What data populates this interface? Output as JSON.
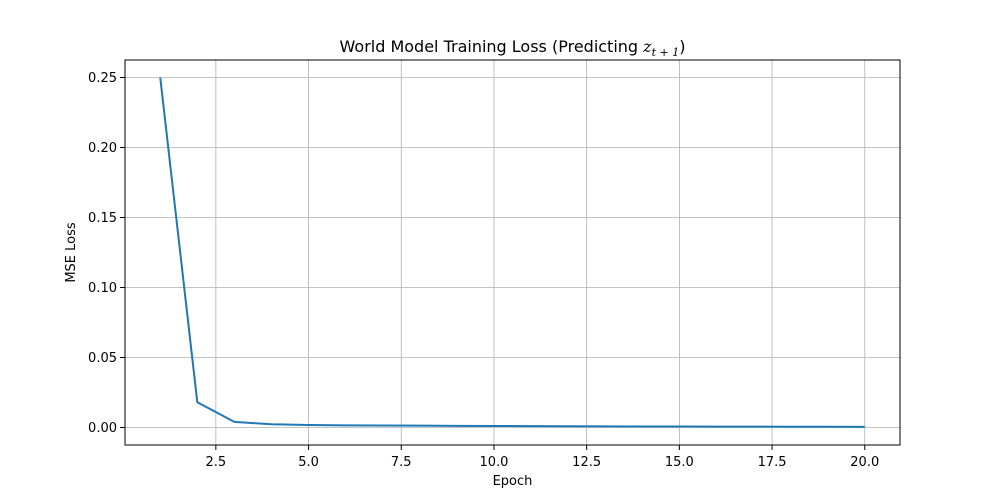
{
  "chart_data": {
    "type": "line",
    "title": {
      "prefix": "World Model Training Loss (Predicting ",
      "math_var": "z",
      "math_sub": "t + 1",
      "suffix": ")"
    },
    "xlabel": "Epoch",
    "ylabel": "MSE Loss",
    "xlim": [
      0.05,
      20.95
    ],
    "ylim": [
      -0.0125,
      0.2625
    ],
    "x_ticks": [
      2.5,
      5.0,
      7.5,
      10.0,
      12.5,
      15.0,
      17.5,
      20.0
    ],
    "x_tick_labels": [
      "2.5",
      "5.0",
      "7.5",
      "10.0",
      "12.5",
      "15.0",
      "17.5",
      "20.0"
    ],
    "y_ticks": [
      0.0,
      0.05,
      0.1,
      0.15,
      0.2,
      0.25
    ],
    "y_tick_labels": [
      "0.00",
      "0.05",
      "0.10",
      "0.15",
      "0.20",
      "0.25"
    ],
    "grid": true,
    "series": [
      {
        "color": "#1f77b4",
        "x": [
          1,
          2,
          3,
          4,
          5,
          6,
          7,
          8,
          9,
          10,
          11,
          12,
          13,
          14,
          15,
          16,
          17,
          18,
          19,
          20
        ],
        "values": [
          0.25,
          0.018,
          0.004,
          0.0023,
          0.0018,
          0.0015,
          0.0014,
          0.0013,
          0.0012,
          0.0011,
          0.001,
          0.0009,
          0.0008,
          0.00075,
          0.0007,
          0.00065,
          0.0006,
          0.00055,
          0.0005,
          0.00045
        ]
      }
    ]
  }
}
